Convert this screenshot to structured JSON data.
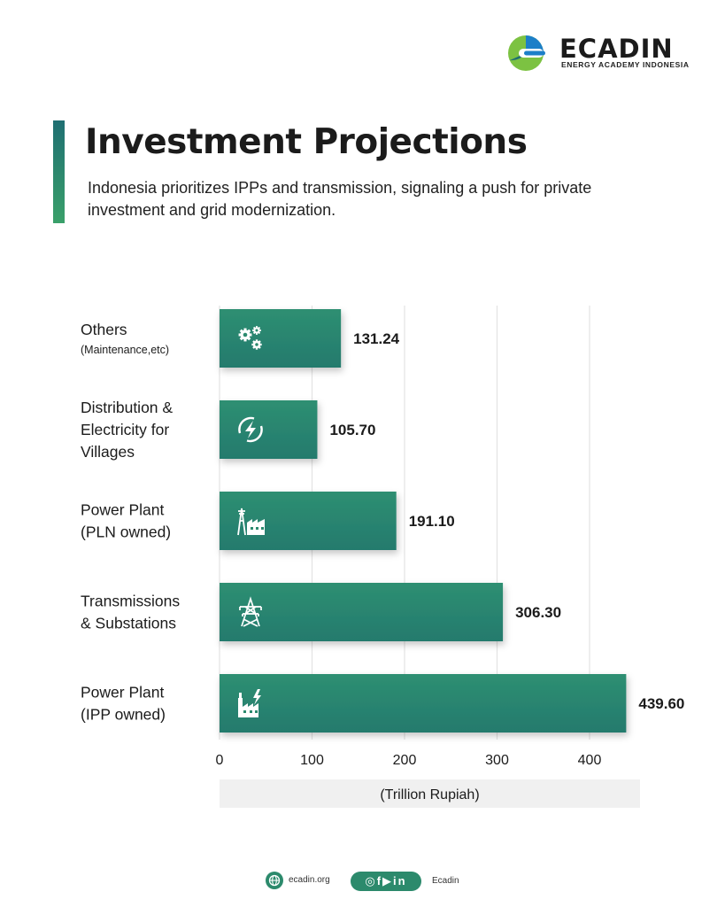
{
  "brand": {
    "name": "ECADIN",
    "tagline": "ENERGY ACADEMY INDONESIA",
    "colors": {
      "green_dark": "#1f6f72",
      "green_light": "#3aa06a",
      "logo_blue": "#1c7fc8",
      "logo_green": "#7cc242"
    }
  },
  "header": {
    "title": "Investment Projections",
    "subtitle": "Indonesia prioritizes IPPs and transmission, signaling a push for private investment and grid modernization."
  },
  "chart_data": {
    "type": "bar",
    "orientation": "horizontal",
    "title": "",
    "xlabel": "(Trillion Rupiah)",
    "ylabel": "",
    "xlim": [
      0,
      450
    ],
    "xticks": [
      "0",
      "100",
      "200",
      "300",
      "400"
    ],
    "grid": true,
    "categories": [
      {
        "lines": [
          "Others"
        ],
        "sub": "(Maintenance,etc)",
        "icon": "gears-icon"
      },
      {
        "lines": [
          "Distribution &",
          "Electricity for",
          "Villages"
        ],
        "icon": "lightning-icon"
      },
      {
        "lines": [
          "Power Plant",
          "(PLN owned)"
        ],
        "icon": "tower-factory-icon"
      },
      {
        "lines": [
          "Transmissions",
          "& Substations"
        ],
        "icon": "transmission-tower-icon"
      },
      {
        "lines": [
          "Power Plant",
          "(IPP owned)"
        ],
        "icon": "power-plant-icon"
      }
    ],
    "values": [
      131.24,
      105.7,
      191.1,
      306.3,
      439.6
    ],
    "value_labels": [
      "131.24",
      "105.70",
      "191.10",
      "306.30",
      "439.60"
    ],
    "bar_color": "#2b8a6e"
  },
  "footer": {
    "website": "ecadin.org",
    "social_handle": "Ecadin",
    "social_icons": [
      "instagram-icon",
      "facebook-icon",
      "youtube-icon",
      "linkedin-icon"
    ],
    "social_glyphs": "◎f▶in"
  }
}
